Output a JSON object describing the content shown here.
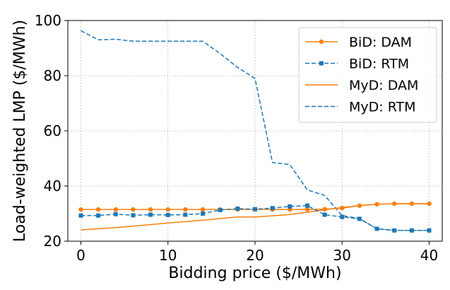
{
  "chart_data": {
    "type": "line",
    "title": "",
    "xlabel": "Bidding price ($/MWh)",
    "ylabel": "Load-weighted LMP ($/MWh)",
    "xlim": [
      -1.5,
      41.5
    ],
    "ylim": [
      20,
      100
    ],
    "xticks": [
      0,
      10,
      20,
      30,
      40
    ],
    "yticks": [
      20,
      40,
      60,
      80,
      100
    ],
    "grid": true,
    "legend_position": "top-right",
    "colors": {
      "orange": "#ff7f0e",
      "blue": "#1f77b4"
    },
    "series": [
      {
        "name": "BiD: DAM",
        "color": "#ff7f0e",
        "line_style": "solid",
        "marker": "circle",
        "x": [
          0,
          2,
          4,
          6,
          8,
          10,
          12,
          14,
          16,
          18,
          20,
          22,
          24,
          26,
          28,
          30,
          32,
          34,
          36,
          38,
          40
        ],
        "y": [
          31.5,
          31.5,
          31.5,
          31.5,
          31.5,
          31.5,
          31.5,
          31.5,
          31.5,
          31.5,
          31.5,
          31.5,
          31.5,
          31.5,
          31.6,
          32.0,
          32.9,
          33.4,
          33.6,
          33.6,
          33.6
        ]
      },
      {
        "name": "BiD: RTM",
        "color": "#1f77b4",
        "line_style": "dashed",
        "marker": "square",
        "x": [
          0,
          2,
          4,
          6,
          8,
          10,
          12,
          14,
          16,
          18,
          20,
          22,
          24,
          26,
          28,
          30,
          32,
          34,
          36,
          38,
          40
        ],
        "y": [
          29.3,
          29.3,
          29.8,
          29.4,
          29.6,
          29.5,
          29.6,
          30.0,
          31.3,
          31.8,
          31.6,
          32.0,
          32.6,
          32.9,
          29.6,
          28.8,
          28.1,
          24.5,
          23.9,
          23.9,
          23.9
        ]
      },
      {
        "name": "MyD: DAM",
        "color": "#ff7f0e",
        "line_style": "solid",
        "marker": "none",
        "x": [
          0,
          2,
          4,
          6,
          8,
          10,
          12,
          14,
          16,
          18,
          20,
          22,
          24,
          26,
          28,
          30,
          32,
          34,
          36,
          38,
          40
        ],
        "y": [
          24.1,
          24.5,
          24.9,
          25.5,
          26.0,
          26.6,
          27.1,
          27.6,
          28.2,
          28.8,
          28.8,
          29.2,
          29.7,
          30.5,
          31.4,
          32.2,
          32.9,
          33.4,
          33.6,
          33.6,
          33.6
        ]
      },
      {
        "name": "MyD: RTM",
        "color": "#1f77b4",
        "line_style": "dashed",
        "marker": "none",
        "x": [
          0,
          2,
          4,
          6,
          8,
          10,
          12,
          14,
          16,
          18,
          20,
          22,
          24,
          26,
          28,
          30,
          32,
          34,
          36,
          38,
          40
        ],
        "y": [
          96.3,
          93.0,
          93.2,
          92.5,
          92.5,
          92.5,
          92.5,
          92.5,
          88.0,
          83.0,
          79.0,
          48.5,
          47.8,
          38.6,
          36.6,
          29.3,
          28.2,
          24.5,
          23.9,
          23.9,
          23.9
        ]
      }
    ]
  }
}
